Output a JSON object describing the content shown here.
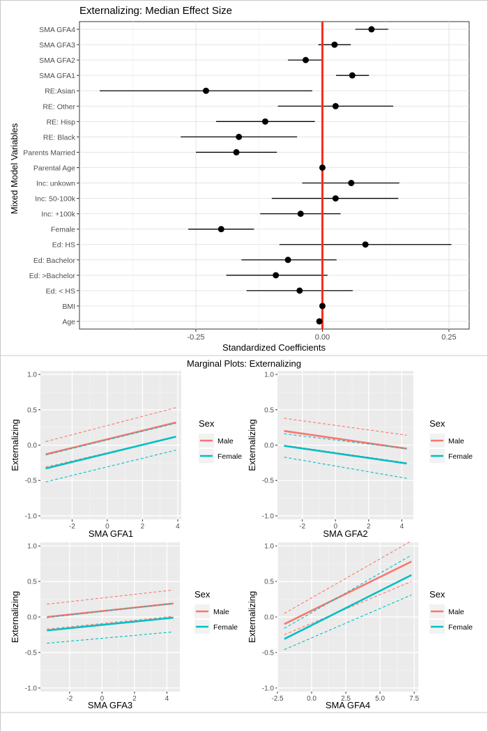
{
  "chart_data": [
    {
      "type": "forest",
      "title": "Externalizing: Median Effect Size",
      "xlabel": "Standardized Coefficients",
      "ylabel": "Mixed Model Variables",
      "xlim": [
        -0.48,
        0.29
      ],
      "xticks": [
        -0.25,
        0.0,
        0.25
      ],
      "xtick_labels": [
        "-0.25",
        "0.00",
        "0.25"
      ],
      "reference_line": 0.0,
      "reference_color": "#ff2a1a",
      "point_color": "#000000",
      "variables": [
        "SMA GFA4",
        "SMA GFA3",
        "SMA GFA2",
        "SMA GFA1",
        "RE:Asian",
        "RE: Other",
        "RE: Hisp",
        "RE: Black",
        "Parents Married",
        "Parental Age",
        "Inc: unkown",
        "Inc: 50-100k",
        "Inc: +100k",
        "Female",
        "Ed: HS",
        "Ed: Bachelor",
        "Ed: >Bachelor",
        "Ed: < HS",
        "BMI",
        "Age"
      ],
      "estimates": [
        0.097,
        0.024,
        -0.033,
        0.059,
        -0.23,
        0.026,
        -0.113,
        -0.165,
        -0.17,
        0.0,
        0.057,
        0.026,
        -0.043,
        -0.2,
        0.085,
        -0.068,
        -0.092,
        -0.045,
        0.0,
        -0.006
      ],
      "lower": [
        0.065,
        -0.008,
        -0.068,
        0.027,
        -0.44,
        -0.088,
        -0.21,
        -0.28,
        -0.25,
        -0.003,
        -0.04,
        -0.1,
        -0.123,
        -0.265,
        -0.085,
        -0.16,
        -0.19,
        -0.15,
        -0.004,
        -0.009
      ],
      "upper": [
        0.13,
        0.056,
        0.002,
        0.092,
        -0.02,
        0.14,
        -0.015,
        -0.05,
        -0.09,
        0.003,
        0.152,
        0.15,
        0.036,
        -0.135,
        0.255,
        0.028,
        0.01,
        0.06,
        0.004,
        -0.003
      ]
    },
    {
      "type": "line",
      "suptitle": "Marginal Plots: Externalizing",
      "panels": [
        {
          "xlabel": "SMA GFA1",
          "ylabel": "Externalizing",
          "xlim": [
            -3.8,
            4.2
          ],
          "ylim": [
            -1.05,
            1.05
          ],
          "xticks": [
            -2,
            0,
            2,
            4
          ],
          "xtick_labels": [
            "-2",
            "0",
            "2",
            "4"
          ],
          "yticks": [
            -1.0,
            -0.5,
            0.0,
            0.5,
            1.0
          ],
          "ytick_labels": [
            "-1.0",
            "-0.5",
            "0.0",
            "0.5",
            "1.0"
          ],
          "x": [
            -3.5,
            3.9
          ],
          "series": [
            {
              "name": "Male",
              "values": [
                -0.13,
                0.32
              ],
              "lower": [
                -0.31,
                0.12
              ],
              "upper": [
                0.05,
                0.53
              ]
            },
            {
              "name": "Female",
              "values": [
                -0.33,
                0.12
              ],
              "lower": [
                -0.52,
                -0.07
              ],
              "upper": [
                -0.14,
                0.31
              ]
            }
          ]
        },
        {
          "xlabel": "SMA GFA2",
          "ylabel": "Externalizing",
          "xlim": [
            -3.5,
            4.7
          ],
          "ylim": [
            -1.05,
            1.05
          ],
          "xticks": [
            -2,
            0,
            2,
            4
          ],
          "xtick_labels": [
            "-2",
            "0",
            "2",
            "4"
          ],
          "yticks": [
            -1.0,
            -0.5,
            0.0,
            0.5,
            1.0
          ],
          "ytick_labels": [
            "-1.0",
            "-0.5",
            "0.0",
            "0.5",
            "1.0"
          ],
          "x": [
            -3.1,
            4.3
          ],
          "series": [
            {
              "name": "Male",
              "values": [
                0.2,
                -0.05
              ],
              "lower": [
                0.0,
                -0.25
              ],
              "upper": [
                0.38,
                0.14
              ]
            },
            {
              "name": "Female",
              "values": [
                -0.01,
                -0.26
              ],
              "lower": [
                -0.17,
                -0.47
              ],
              "upper": [
                0.16,
                -0.05
              ]
            }
          ]
        },
        {
          "xlabel": "SMA GFA3",
          "ylabel": "Externalizing",
          "xlim": [
            -3.8,
            4.8
          ],
          "ylim": [
            -1.05,
            1.05
          ],
          "xticks": [
            -2,
            0,
            2,
            4
          ],
          "xtick_labels": [
            "-2",
            "0",
            "2",
            "4"
          ],
          "yticks": [
            -1.0,
            -0.5,
            0.0,
            0.5,
            1.0
          ],
          "ytick_labels": [
            "-1.0",
            "-0.5",
            "0.0",
            "0.5",
            "1.0"
          ],
          "x": [
            -3.4,
            4.4
          ],
          "series": [
            {
              "name": "Male",
              "values": [
                0.0,
                0.19
              ],
              "lower": [
                -0.17,
                0.01
              ],
              "upper": [
                0.18,
                0.38
              ]
            },
            {
              "name": "Female",
              "values": [
                -0.19,
                -0.01
              ],
              "lower": [
                -0.37,
                -0.21
              ],
              "upper": [
                -0.01,
                0.19
              ]
            }
          ]
        },
        {
          "xlabel": "SMA GFA4",
          "ylabel": "Externalizing",
          "xlim": [
            -2.5,
            7.8
          ],
          "ylim": [
            -1.05,
            1.05
          ],
          "xticks": [
            -2.5,
            0.0,
            2.5,
            5.0,
            7.5
          ],
          "xtick_labels": [
            "-2.5",
            "0.0",
            "2.5",
            "5.0",
            "7.5"
          ],
          "yticks": [
            -1.0,
            -0.5,
            0.0,
            0.5,
            1.0
          ],
          "ytick_labels": [
            "-1.0",
            "-0.5",
            "0.0",
            "0.5",
            "1.0"
          ],
          "x": [
            -2.0,
            7.3
          ],
          "series": [
            {
              "name": "Male",
              "values": [
                -0.1,
                0.78
              ],
              "lower": [
                -0.25,
                0.5
              ],
              "upper": [
                0.05,
                1.07
              ]
            },
            {
              "name": "Female",
              "values": [
                -0.31,
                0.59
              ],
              "lower": [
                -0.46,
                0.31
              ],
              "upper": [
                -0.16,
                0.87
              ]
            }
          ]
        }
      ],
      "legend": {
        "title": "Sex",
        "entries": [
          {
            "name": "Male",
            "color": "#f8766d"
          },
          {
            "name": "Female",
            "color": "#00bfc4"
          }
        ]
      },
      "panel_background": "#ebebeb",
      "grid_color": "#ffffff"
    }
  ]
}
